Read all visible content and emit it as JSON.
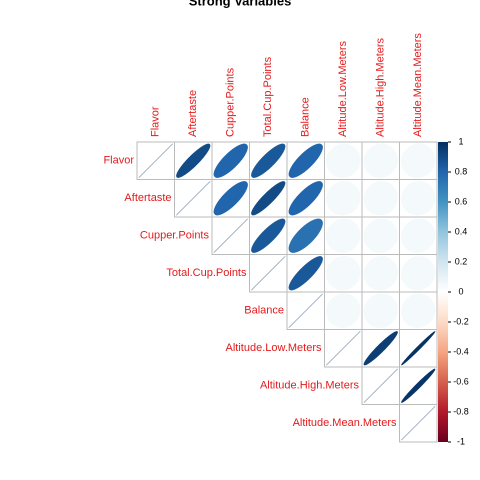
{
  "chart_data": {
    "type": "corrplot",
    "title": "Strong Variables",
    "variables": [
      "Flavor",
      "Aftertaste",
      "Cupper.Points",
      "Total.Cup.Points",
      "Balance",
      "Altitude.Low.Meters",
      "Altitude.High.Meters",
      "Altitude.Mean.Meters"
    ],
    "values": [
      [
        1,
        0.9,
        0.8,
        0.85,
        0.8,
        0.05,
        0.05,
        0.05
      ],
      [
        null,
        1,
        0.8,
        0.9,
        0.8,
        0.05,
        0.05,
        0.05
      ],
      [
        null,
        null,
        1,
        0.85,
        0.75,
        0.05,
        0.05,
        0.05
      ],
      [
        null,
        null,
        null,
        1,
        0.85,
        0.05,
        0.05,
        0.05
      ],
      [
        null,
        null,
        null,
        null,
        1,
        0.05,
        0.05,
        0.05
      ],
      [
        null,
        null,
        null,
        null,
        null,
        1,
        0.95,
        0.99
      ],
      [
        null,
        null,
        null,
        null,
        null,
        null,
        1,
        0.98
      ],
      [
        null,
        null,
        null,
        null,
        null,
        null,
        null,
        1
      ]
    ],
    "clim": [
      -1,
      1
    ],
    "colorbar_ticks": [
      -1,
      -0.8,
      -0.6,
      -0.4,
      -0.2,
      0,
      0.2,
      0.4,
      0.6,
      0.8,
      1
    ],
    "colorscale": [
      "#67001F",
      "#B2182B",
      "#D6604D",
      "#F4A582",
      "#FDDBC7",
      "#FFFFFF",
      "#D1E5F0",
      "#92C5DE",
      "#4393C3",
      "#2166AC",
      "#053061"
    ],
    "label_color": "#e41a1c"
  }
}
